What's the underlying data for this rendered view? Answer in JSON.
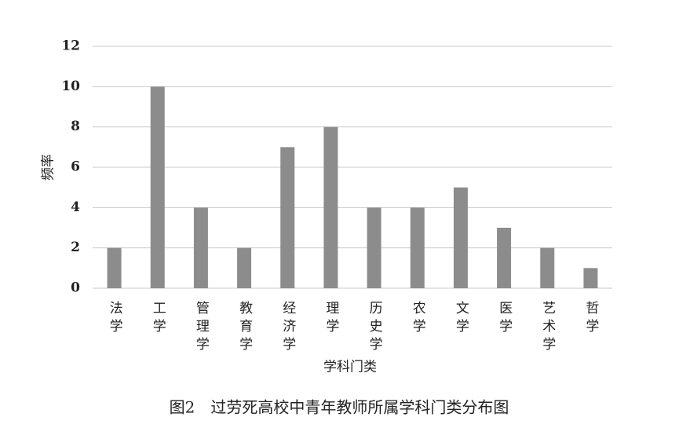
{
  "chart_data": {
    "type": "bar",
    "title": "图2　过劳死高校中青年教师所属学科门类分布图",
    "x_label": "学科门类",
    "y_label": "频率",
    "categories": [
      "法学",
      "工学",
      "管理学",
      "教育学",
      "经济学",
      "理学",
      "历史学",
      "农学",
      "文学",
      "医学",
      "艺术学",
      "哲学"
    ],
    "values": [
      2,
      10,
      4,
      2,
      7,
      8,
      4,
      4,
      5,
      3,
      2,
      1
    ],
    "color": "#8c8c8c",
    "ylim": [
      0,
      12
    ],
    "yticks": [
      0,
      2,
      4,
      6,
      8,
      10,
      12
    ],
    "grid": true
  }
}
